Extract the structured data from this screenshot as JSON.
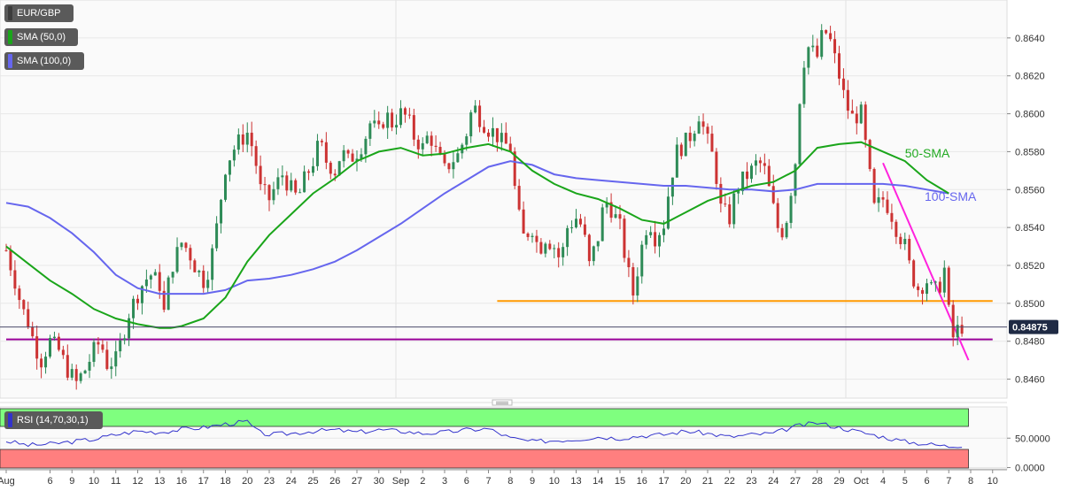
{
  "chart_data": {
    "type": "candlestick",
    "instrument": "EUR/GBP",
    "indicators": [
      {
        "label": "SMA (50,0)",
        "color": "#1aa51a"
      },
      {
        "label": "SMA (100,0)",
        "color": "#6666ee"
      }
    ],
    "y_ticks": [
      "0.8640",
      "0.8620",
      "0.8600",
      "0.8580",
      "0.8560",
      "0.8540",
      "0.8520",
      "0.8500",
      "0.8480",
      "0.8460"
    ],
    "y_tick_values": [
      0.864,
      0.862,
      0.86,
      0.858,
      0.856,
      0.854,
      0.852,
      0.85,
      0.848,
      0.846
    ],
    "ylim": [
      0.845,
      0.866
    ],
    "x_ticks": [
      "Aug",
      "6",
      "9",
      "10",
      "11",
      "12",
      "13",
      "16",
      "17",
      "18",
      "20",
      "23",
      "24",
      "25",
      "26",
      "27",
      "30",
      "Sep",
      "2",
      "3",
      "6",
      "7",
      "8",
      "9",
      "10",
      "13",
      "14",
      "15",
      "16",
      "17",
      "20",
      "21",
      "22",
      "23",
      "24",
      "27",
      "28",
      "29",
      "Oct",
      "4",
      "5",
      "6",
      "7",
      "8",
      "10"
    ],
    "x_tick_index": [
      0,
      2,
      3,
      4,
      5,
      6,
      7,
      8,
      9,
      10,
      11,
      12,
      13,
      14,
      15,
      16,
      17,
      18,
      19,
      20,
      21,
      22,
      23,
      24,
      25,
      26,
      27,
      28,
      29,
      30,
      31,
      32,
      33,
      34,
      35,
      36,
      37,
      38,
      39,
      40,
      41,
      42,
      43,
      44,
      45
    ],
    "price_path": [
      [
        0,
        0.8528
      ],
      [
        0.4,
        0.8512
      ],
      [
        0.7,
        0.8498
      ],
      [
        1.0,
        0.849
      ],
      [
        1.3,
        0.8478
      ],
      [
        1.6,
        0.847
      ],
      [
        2.0,
        0.848
      ],
      [
        2.4,
        0.8475
      ],
      [
        2.8,
        0.8465
      ],
      [
        3.2,
        0.8458
      ],
      [
        3.6,
        0.8465
      ],
      [
        4.0,
        0.8475
      ],
      [
        4.3,
        0.848
      ],
      [
        4.6,
        0.8468
      ],
      [
        5.0,
        0.847
      ],
      [
        5.3,
        0.8482
      ],
      [
        5.6,
        0.8495
      ],
      [
        6.0,
        0.8505
      ],
      [
        6.3,
        0.8512
      ],
      [
        6.6,
        0.8515
      ],
      [
        7.0,
        0.851
      ],
      [
        7.2,
        0.8495
      ],
      [
        7.5,
        0.8518
      ],
      [
        8.0,
        0.8532
      ],
      [
        8.3,
        0.8528
      ],
      [
        8.6,
        0.852
      ],
      [
        9.0,
        0.8512
      ],
      [
        9.3,
        0.852
      ],
      [
        9.6,
        0.854
      ],
      [
        10.0,
        0.8572
      ],
      [
        10.3,
        0.858
      ],
      [
        10.6,
        0.8585
      ],
      [
        11.0,
        0.859
      ],
      [
        11.3,
        0.858
      ],
      [
        11.6,
        0.856
      ],
      [
        12.0,
        0.8555
      ],
      [
        12.3,
        0.8562
      ],
      [
        12.6,
        0.8568
      ],
      [
        13.0,
        0.856
      ],
      [
        13.3,
        0.8555
      ],
      [
        13.6,
        0.8565
      ],
      [
        14.0,
        0.8575
      ],
      [
        14.3,
        0.8585
      ],
      [
        14.6,
        0.8575
      ],
      [
        15.0,
        0.857
      ],
      [
        15.3,
        0.858
      ],
      [
        15.6,
        0.8575
      ],
      [
        16.0,
        0.858
      ],
      [
        16.3,
        0.8585
      ],
      [
        16.6,
        0.8595
      ],
      [
        17.0,
        0.859
      ],
      [
        17.3,
        0.86
      ],
      [
        17.6,
        0.8595
      ],
      [
        18.0,
        0.86
      ],
      [
        18.3,
        0.8598
      ],
      [
        18.6,
        0.8588
      ],
      [
        19.0,
        0.8582
      ],
      [
        19.3,
        0.859
      ],
      [
        19.6,
        0.858
      ],
      [
        20.0,
        0.857
      ],
      [
        20.3,
        0.8575
      ],
      [
        20.6,
        0.8578
      ],
      [
        21.0,
        0.859
      ],
      [
        21.3,
        0.8605
      ],
      [
        21.6,
        0.8598
      ],
      [
        22.0,
        0.8592
      ],
      [
        22.3,
        0.859
      ],
      [
        22.6,
        0.8585
      ],
      [
        23.0,
        0.8582
      ],
      [
        23.3,
        0.855
      ],
      [
        23.6,
        0.8535
      ],
      [
        24.0,
        0.854
      ],
      [
        24.3,
        0.8528
      ],
      [
        24.6,
        0.8535
      ],
      [
        25.0,
        0.853
      ],
      [
        25.3,
        0.8522
      ],
      [
        25.6,
        0.854
      ],
      [
        26.0,
        0.8545
      ],
      [
        26.3,
        0.854
      ],
      [
        26.6,
        0.852
      ],
      [
        27.0,
        0.8535
      ],
      [
        27.3,
        0.8555
      ],
      [
        27.6,
        0.855
      ],
      [
        28.0,
        0.854
      ],
      [
        28.3,
        0.852
      ],
      [
        28.6,
        0.8505
      ],
      [
        29.0,
        0.853
      ],
      [
        29.3,
        0.8545
      ],
      [
        29.6,
        0.8535
      ],
      [
        30.0,
        0.8542
      ],
      [
        30.3,
        0.8565
      ],
      [
        30.6,
        0.858
      ],
      [
        31.0,
        0.8585
      ],
      [
        31.3,
        0.859
      ],
      [
        31.6,
        0.86
      ],
      [
        32.0,
        0.8585
      ],
      [
        32.3,
        0.8575
      ],
      [
        32.6,
        0.855
      ],
      [
        33.0,
        0.8545
      ],
      [
        33.3,
        0.856
      ],
      [
        33.6,
        0.8565
      ],
      [
        34.0,
        0.857
      ],
      [
        34.3,
        0.8575
      ],
      [
        34.6,
        0.857
      ],
      [
        35.0,
        0.855
      ],
      [
        35.3,
        0.8535
      ],
      [
        35.6,
        0.8545
      ],
      [
        36.0,
        0.8575
      ],
      [
        36.3,
        0.8625
      ],
      [
        36.6,
        0.8635
      ],
      [
        37.0,
        0.863
      ],
      [
        37.3,
        0.8645
      ],
      [
        37.6,
        0.8638
      ],
      [
        38.0,
        0.862
      ],
      [
        38.3,
        0.8605
      ],
      [
        38.6,
        0.8598
      ],
      [
        39.0,
        0.86
      ],
      [
        39.3,
        0.8575
      ],
      [
        39.6,
        0.855
      ],
      [
        40.0,
        0.8555
      ],
      [
        40.3,
        0.855
      ],
      [
        40.6,
        0.854
      ],
      [
        41.0,
        0.853
      ],
      [
        41.3,
        0.8515
      ],
      [
        41.6,
        0.8508
      ],
      [
        42.0,
        0.8512
      ],
      [
        42.3,
        0.8505
      ],
      [
        42.6,
        0.851
      ],
      [
        42.8,
        0.8518
      ],
      [
        43.0,
        0.8495
      ],
      [
        43.2,
        0.8482
      ],
      [
        43.4,
        0.8486
      ],
      [
        43.6,
        0.8488
      ]
    ],
    "sma_50": [
      [
        0,
        0.853
      ],
      [
        1,
        0.8521
      ],
      [
        2,
        0.8512
      ],
      [
        3,
        0.8505
      ],
      [
        4,
        0.8497
      ],
      [
        5,
        0.8492
      ],
      [
        6,
        0.8489
      ],
      [
        7,
        0.8487
      ],
      [
        7.5,
        0.8487
      ],
      [
        8,
        0.8488
      ],
      [
        9,
        0.8492
      ],
      [
        10,
        0.8503
      ],
      [
        11,
        0.8522
      ],
      [
        12,
        0.8536
      ],
      [
        13,
        0.8547
      ],
      [
        14,
        0.8558
      ],
      [
        15,
        0.8566
      ],
      [
        16,
        0.8575
      ],
      [
        17,
        0.858
      ],
      [
        18,
        0.8582
      ],
      [
        19,
        0.8578
      ],
      [
        20,
        0.8579
      ],
      [
        21,
        0.8582
      ],
      [
        22,
        0.8584
      ],
      [
        23,
        0.858
      ],
      [
        24,
        0.857
      ],
      [
        25,
        0.8563
      ],
      [
        26,
        0.8558
      ],
      [
        27,
        0.8555
      ],
      [
        28,
        0.855
      ],
      [
        29,
        0.8544
      ],
      [
        30,
        0.8542
      ],
      [
        31,
        0.8548
      ],
      [
        32,
        0.8554
      ],
      [
        33,
        0.8558
      ],
      [
        34,
        0.8562
      ],
      [
        35,
        0.8564
      ],
      [
        36,
        0.857
      ],
      [
        37,
        0.8582
      ],
      [
        38,
        0.8584
      ],
      [
        39,
        0.8585
      ],
      [
        40,
        0.858
      ],
      [
        41,
        0.8575
      ],
      [
        42,
        0.8565
      ],
      [
        43,
        0.8558
      ]
    ],
    "sma_100": [
      [
        0,
        0.8553
      ],
      [
        1,
        0.8551
      ],
      [
        2,
        0.8545
      ],
      [
        3,
        0.8537
      ],
      [
        4,
        0.8527
      ],
      [
        5,
        0.8515
      ],
      [
        6,
        0.8508
      ],
      [
        7,
        0.8505
      ],
      [
        8,
        0.8505
      ],
      [
        9,
        0.8505
      ],
      [
        10,
        0.8507
      ],
      [
        11,
        0.8512
      ],
      [
        12,
        0.8513
      ],
      [
        13,
        0.8515
      ],
      [
        14,
        0.8518
      ],
      [
        15,
        0.8522
      ],
      [
        16,
        0.8528
      ],
      [
        17,
        0.8535
      ],
      [
        18,
        0.8542
      ],
      [
        19,
        0.855
      ],
      [
        20,
        0.8558
      ],
      [
        21,
        0.8565
      ],
      [
        22,
        0.8572
      ],
      [
        23,
        0.8575
      ],
      [
        24,
        0.8573
      ],
      [
        25,
        0.8568
      ],
      [
        26,
        0.8566
      ],
      [
        27,
        0.8565
      ],
      [
        28,
        0.8564
      ],
      [
        29,
        0.8563
      ],
      [
        30,
        0.8562
      ],
      [
        31,
        0.8562
      ],
      [
        32,
        0.8561
      ],
      [
        33,
        0.856
      ],
      [
        34,
        0.856
      ],
      [
        35,
        0.8559
      ],
      [
        36,
        0.856
      ],
      [
        37,
        0.8563
      ],
      [
        38,
        0.8563
      ],
      [
        39,
        0.8563
      ],
      [
        40,
        0.8563
      ],
      [
        41,
        0.8562
      ],
      [
        42,
        0.856
      ],
      [
        43,
        0.8558
      ]
    ],
    "levels": [
      {
        "type": "horizontal",
        "value": 0.85012,
        "from": 22.4,
        "to": 45.0,
        "color": "#ff9900"
      },
      {
        "type": "horizontal",
        "value": 0.8481,
        "from": 0,
        "to": 45.0,
        "color": "#990099"
      },
      {
        "type": "trendline",
        "from": [
          40.0,
          0.8574
        ],
        "to": [
          43.9,
          0.847
        ],
        "color": "#ff22dd"
      }
    ],
    "last_price": {
      "value": 0.84875,
      "label": "0.84875"
    },
    "annotations": [
      {
        "text": "50-SMA",
        "color": "#22aa22",
        "at": [
          41.0,
          0.8577
        ]
      },
      {
        "text": "100-SMA",
        "color": "#6666ee",
        "at": [
          41.9,
          0.8554
        ]
      }
    ],
    "rsi": {
      "label": "RSI (14,70,30,1)",
      "y_ticks": [
        "50.0000",
        "0.0000"
      ],
      "y_tick_values": [
        50,
        0
      ],
      "ylim": [
        0,
        100
      ],
      "overbought_color": "#7fff7f",
      "oversold_color": "#ff7f7f",
      "line_color": "#3333cc",
      "values": [
        [
          0,
          45
        ],
        [
          1,
          38
        ],
        [
          2,
          40
        ],
        [
          3,
          44
        ],
        [
          4,
          48
        ],
        [
          5,
          56
        ],
        [
          6,
          62
        ],
        [
          7,
          60
        ],
        [
          8,
          65
        ],
        [
          9,
          68
        ],
        [
          10,
          74
        ],
        [
          11,
          78
        ],
        [
          11.5,
          60
        ],
        [
          12,
          56
        ],
        [
          13,
          58
        ],
        [
          14,
          62
        ],
        [
          15,
          64
        ],
        [
          16,
          60
        ],
        [
          17,
          64
        ],
        [
          18,
          62
        ],
        [
          19,
          58
        ],
        [
          20,
          60
        ],
        [
          21,
          64
        ],
        [
          22,
          66
        ],
        [
          23,
          50
        ],
        [
          24,
          44
        ],
        [
          25,
          46
        ],
        [
          26,
          48
        ],
        [
          27,
          52
        ],
        [
          28,
          50
        ],
        [
          29,
          54
        ],
        [
          30,
          56
        ],
        [
          31,
          62
        ],
        [
          32,
          58
        ],
        [
          33,
          52
        ],
        [
          34,
          56
        ],
        [
          35,
          58
        ],
        [
          36,
          70
        ],
        [
          37,
          76
        ],
        [
          38,
          68
        ],
        [
          39,
          60
        ],
        [
          40,
          52
        ],
        [
          41,
          44
        ],
        [
          42,
          40
        ],
        [
          43,
          36
        ],
        [
          43.6,
          38
        ]
      ]
    }
  }
}
